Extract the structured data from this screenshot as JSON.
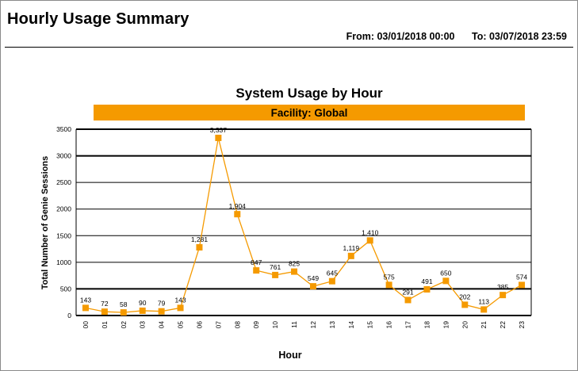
{
  "report": {
    "title": "Hourly Usage Summary",
    "from_label": "From:",
    "from_value": "03/01/2018 00:00",
    "to_label": "To:",
    "to_value": "03/07/2018 23:59"
  },
  "colors": {
    "accent": "#f59a00",
    "line": "#f59a00",
    "marker": "#f59a00"
  },
  "chart_data": {
    "type": "line",
    "title": "System Usage by Hour",
    "subtitle": "Facility: Global",
    "xlabel": "Hour",
    "ylabel": "Total Number of Genie Sessions",
    "ylim": [
      0,
      3500
    ],
    "yticks": [
      0,
      500,
      1000,
      1500,
      2000,
      2500,
      3000,
      3500
    ],
    "grid": true,
    "categories": [
      "00",
      "01",
      "02",
      "03",
      "04",
      "05",
      "06",
      "07",
      "08",
      "09",
      "10",
      "11",
      "12",
      "13",
      "14",
      "15",
      "16",
      "17",
      "18",
      "19",
      "20",
      "21",
      "22",
      "23"
    ],
    "values": [
      143,
      72,
      58,
      90,
      79,
      143,
      1281,
      3337,
      1904,
      847,
      761,
      825,
      549,
      645,
      1119,
      1410,
      575,
      291,
      491,
      650,
      202,
      113,
      385,
      574
    ],
    "data_labels": [
      "143",
      "72",
      "58",
      "90",
      "79",
      "143",
      "1,281",
      "3,337",
      "1,904",
      "847",
      "761",
      "825",
      "549",
      "645",
      "1,119",
      "1,410",
      "575",
      "291",
      "491",
      "650",
      "202",
      "113",
      "385",
      "574"
    ]
  }
}
